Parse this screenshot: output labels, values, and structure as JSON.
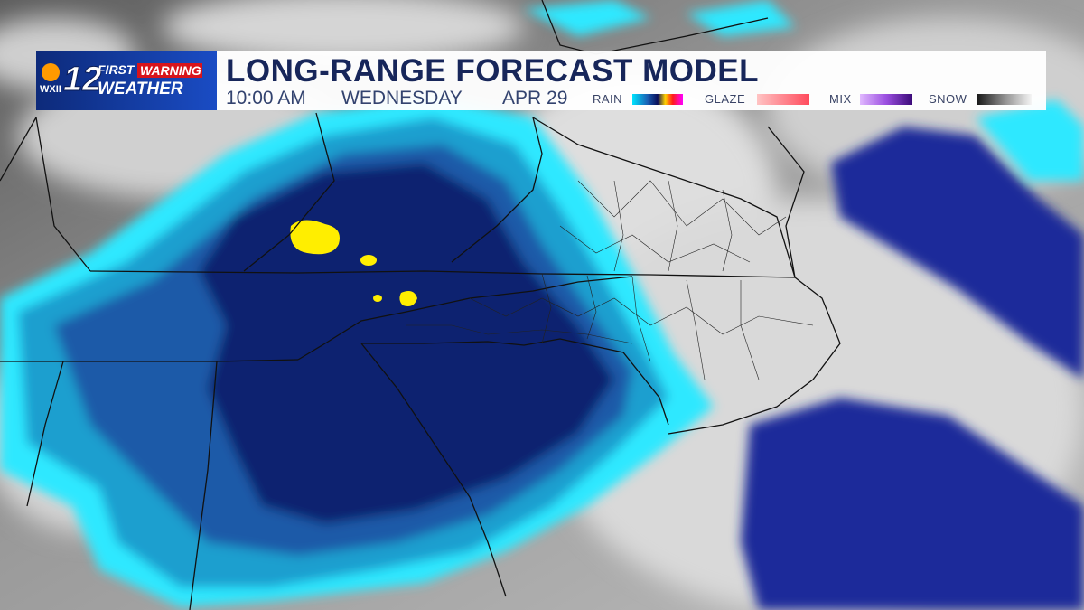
{
  "header": {
    "logo": {
      "station": "WXII",
      "channel": "12",
      "brand_first": "FIRST",
      "brand_warning": "WARNING",
      "brand_bottom": "WEATHER"
    },
    "title": "LONG-RANGE FORECAST MODEL",
    "time": "10:00 AM",
    "day": "WEDNESDAY",
    "date": "APR 29"
  },
  "legend": {
    "items": [
      {
        "label": "RAIN"
      },
      {
        "label": "GLAZE"
      },
      {
        "label": "MIX"
      },
      {
        "label": "SNOW"
      }
    ]
  }
}
